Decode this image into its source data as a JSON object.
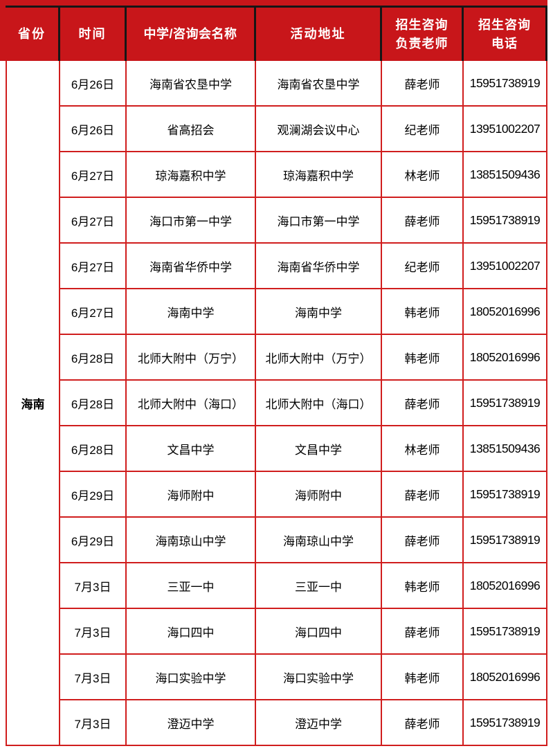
{
  "colors": {
    "header_red": "#c8161a",
    "border_red": "#d01d1d",
    "header_divider_black": "#161616",
    "header_text": "#ffffff",
    "body_text": "#000000"
  },
  "table": {
    "columns": [
      "省份",
      "时间",
      "中学/咨询会名称",
      "活动地址",
      "招生咨询\n负责老师",
      "招生咨询\n电话"
    ],
    "province": "海南",
    "rows": [
      {
        "date": "6月26日",
        "name": "海南省农垦中学",
        "venue": "海南省农垦中学",
        "teacher": "薛老师",
        "phone": "15951738919"
      },
      {
        "date": "6月26日",
        "name": "省高招会",
        "venue": "观澜湖会议中心",
        "teacher": "纪老师",
        "phone": "13951002207"
      },
      {
        "date": "6月27日",
        "name": "琼海嘉积中学",
        "venue": "琼海嘉积中学",
        "teacher": "林老师",
        "phone": "13851509436"
      },
      {
        "date": "6月27日",
        "name": "海口市第一中学",
        "venue": "海口市第一中学",
        "teacher": "薛老师",
        "phone": "15951738919"
      },
      {
        "date": "6月27日",
        "name": "海南省华侨中学",
        "venue": "海南省华侨中学",
        "teacher": "纪老师",
        "phone": "13951002207"
      },
      {
        "date": "6月27日",
        "name": "海南中学",
        "venue": "海南中学",
        "teacher": "韩老师",
        "phone": "18052016996"
      },
      {
        "date": "6月28日",
        "name": "北师大附中（万宁）",
        "venue": "北师大附中（万宁）",
        "teacher": "韩老师",
        "phone": "18052016996"
      },
      {
        "date": "6月28日",
        "name": "北师大附中（海口）",
        "venue": "北师大附中（海口）",
        "teacher": "薛老师",
        "phone": "15951738919"
      },
      {
        "date": "6月28日",
        "name": "文昌中学",
        "venue": "文昌中学",
        "teacher": "林老师",
        "phone": "13851509436"
      },
      {
        "date": "6月29日",
        "name": "海师附中",
        "venue": "海师附中",
        "teacher": "薛老师",
        "phone": "15951738919"
      },
      {
        "date": "6月29日",
        "name": "海南琼山中学",
        "venue": "海南琼山中学",
        "teacher": "薛老师",
        "phone": "15951738919"
      },
      {
        "date": "7月3日",
        "name": "三亚一中",
        "venue": "三亚一中",
        "teacher": "韩老师",
        "phone": "18052016996"
      },
      {
        "date": "7月3日",
        "name": "海口四中",
        "venue": "海口四中",
        "teacher": "薛老师",
        "phone": "15951738919"
      },
      {
        "date": "7月3日",
        "name": "海口实验中学",
        "venue": "海口实验中学",
        "teacher": "韩老师",
        "phone": "18052016996"
      },
      {
        "date": "7月3日",
        "name": "澄迈中学",
        "venue": "澄迈中学",
        "teacher": "薛老师",
        "phone": "15951738919"
      }
    ]
  }
}
